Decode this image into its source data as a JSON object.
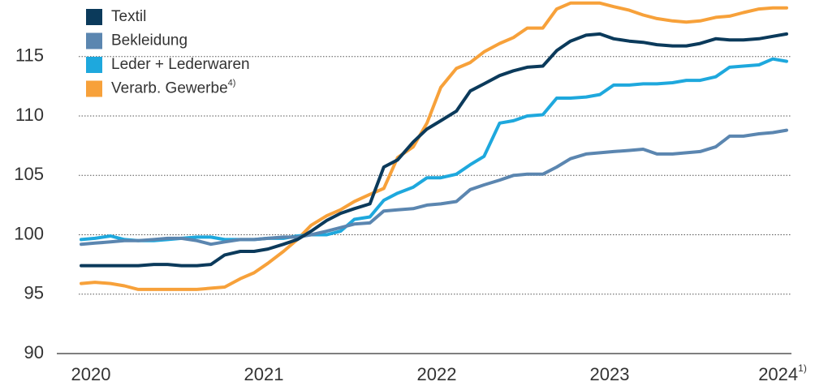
{
  "chart_data": {
    "type": "line",
    "x": [
      2020,
      2020.08,
      2020.17,
      2020.25,
      2020.33,
      2020.42,
      2020.5,
      2020.58,
      2020.67,
      2020.75,
      2020.83,
      2020.92,
      2021,
      2021.08,
      2021.17,
      2021.25,
      2021.33,
      2021.42,
      2021.5,
      2021.58,
      2021.67,
      2021.75,
      2021.83,
      2021.92,
      2022,
      2022.08,
      2022.17,
      2022.25,
      2022.33,
      2022.42,
      2022.5,
      2022.58,
      2022.67,
      2022.75,
      2022.83,
      2022.92,
      2023,
      2023.08,
      2023.17,
      2023.25,
      2023.33,
      2023.42,
      2023.5,
      2023.58,
      2023.67,
      2023.75,
      2023.83,
      2023.92,
      2024,
      2024.08
    ],
    "series": [
      {
        "name": "Textil",
        "color": "#0b3a5b",
        "values": [
          97.4,
          97.4,
          97.4,
          97.4,
          97.4,
          97.5,
          97.5,
          97.4,
          97.4,
          97.5,
          98.3,
          98.6,
          98.6,
          98.8,
          99.2,
          99.6,
          100.3,
          101.2,
          101.8,
          102.2,
          102.6,
          105.7,
          106.3,
          107.8,
          108.9,
          109.6,
          110.4,
          112.1,
          112.7,
          113.4,
          113.8,
          114.1,
          114.2,
          115.5,
          116.3,
          116.8,
          116.9,
          116.5,
          116.3,
          116.2,
          116.0,
          115.9,
          115.9,
          116.1,
          116.5,
          116.4,
          116.4,
          116.5,
          116.7,
          116.9
        ]
      },
      {
        "name": "Bekleidung",
        "color": "#5b86b0",
        "values": [
          99.2,
          99.3,
          99.4,
          99.5,
          99.5,
          99.6,
          99.7,
          99.7,
          99.5,
          99.2,
          99.4,
          99.6,
          99.6,
          99.7,
          99.8,
          99.8,
          100.0,
          100.3,
          100.6,
          100.9,
          101.0,
          102.0,
          102.1,
          102.2,
          102.5,
          102.6,
          102.8,
          103.8,
          104.2,
          104.6,
          105.0,
          105.1,
          105.1,
          105.7,
          106.4,
          106.8,
          106.9,
          107.0,
          107.1,
          107.2,
          106.8,
          106.8,
          106.9,
          107.0,
          107.4,
          108.3,
          108.3,
          108.5,
          108.6,
          108.8
        ]
      },
      {
        "name": "Leder + Lederwaren",
        "color": "#1ea8dd",
        "values": [
          99.6,
          99.7,
          99.9,
          99.6,
          99.5,
          99.5,
          99.6,
          99.7,
          99.8,
          99.8,
          99.6,
          99.6,
          99.6,
          99.7,
          99.7,
          99.9,
          100.0,
          100.0,
          100.3,
          101.3,
          101.5,
          102.9,
          103.5,
          104.0,
          104.8,
          104.8,
          105.1,
          105.9,
          106.6,
          109.4,
          109.6,
          110.0,
          110.1,
          111.5,
          111.5,
          111.6,
          111.8,
          112.6,
          112.6,
          112.7,
          112.7,
          112.8,
          113.0,
          113.0,
          113.3,
          114.1,
          114.2,
          114.3,
          114.8,
          114.6
        ]
      },
      {
        "name": "Verarb. Gewerbe",
        "name_sup": "4)",
        "color": "#f7a13a",
        "values": [
          95.9,
          96.0,
          95.9,
          95.7,
          95.4,
          95.4,
          95.4,
          95.4,
          95.4,
          95.5,
          95.6,
          96.3,
          96.8,
          97.6,
          98.6,
          99.6,
          100.8,
          101.6,
          102.1,
          102.8,
          103.4,
          103.9,
          106.5,
          107.4,
          109.4,
          112.4,
          114.0,
          114.5,
          115.4,
          116.1,
          116.6,
          117.4,
          117.4,
          119.0,
          119.5,
          119.5,
          119.5,
          119.2,
          118.9,
          118.5,
          118.2,
          118.0,
          117.9,
          118.0,
          118.3,
          118.4,
          118.7,
          119.0,
          119.1,
          119.1
        ]
      }
    ],
    "xlim": [
      2020,
      2024.08
    ],
    "xticks": [
      2020,
      2021,
      2022,
      2023,
      {
        "value": 2024,
        "label": "2024",
        "sup": "1)"
      }
    ],
    "ylim": [
      90,
      120
    ],
    "yticks": [
      90,
      95,
      100,
      105,
      110,
      115
    ],
    "grid": true,
    "legend": "upper left"
  }
}
